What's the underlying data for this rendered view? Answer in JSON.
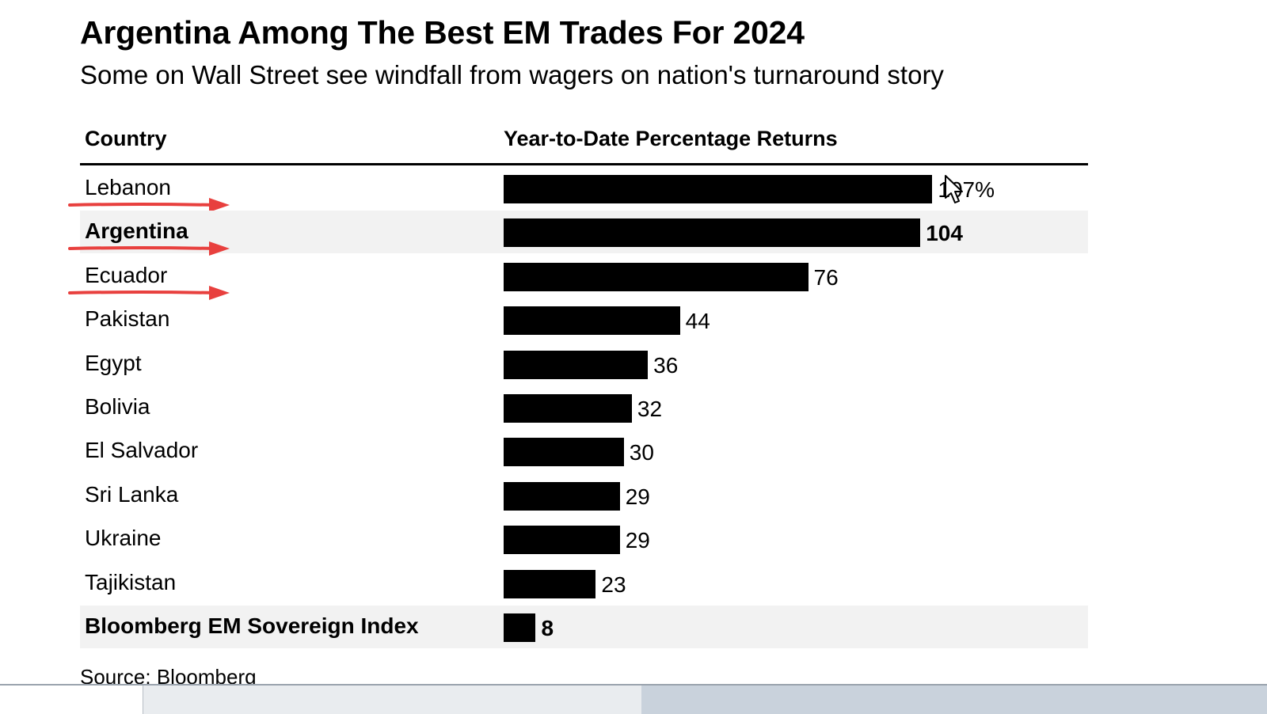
{
  "header": {
    "title": "Argentina Among The Best EM Trades For 2024",
    "subtitle": "Some on Wall Street see windfall from wagers on nation's turnaround story"
  },
  "table": {
    "col_country": "Country",
    "col_returns": "Year-to-Date Percentage Returns"
  },
  "chart_data": {
    "type": "bar",
    "orientation": "horizontal",
    "title": "Argentina Among The Best EM Trades For 2024",
    "subtitle": "Some on Wall Street see windfall from wagers on nation's turnaround story",
    "xlabel": "Year-to-Date Percentage Returns",
    "ylabel": "Country",
    "unit": "%",
    "grid": false,
    "categories": [
      "Lebanon",
      "Argentina",
      "Ecuador",
      "Pakistan",
      "Egypt",
      "Bolivia",
      "El Salvador",
      "Sri Lanka",
      "Ukraine",
      "Tajikistan",
      "Bloomberg EM Sovereign Index"
    ],
    "values": [
      107,
      104,
      76,
      44,
      36,
      32,
      30,
      29,
      29,
      23,
      8
    ],
    "value_labels": [
      "107%",
      "104",
      "76",
      "44",
      "36",
      "32",
      "30",
      "29",
      "29",
      "23",
      "8"
    ],
    "bold": [
      false,
      true,
      false,
      false,
      false,
      false,
      false,
      false,
      false,
      false,
      true
    ],
    "shaded": [
      false,
      true,
      false,
      false,
      false,
      false,
      false,
      false,
      false,
      false,
      true
    ],
    "annotations": {
      "red_arrows": [
        "Lebanon",
        "Argentina",
        "Ecuador"
      ],
      "arrow_color": "#e8403e"
    },
    "bar_color": "#000000"
  },
  "footer": {
    "source": "Source: Bloomberg"
  },
  "colors": {
    "shade": "#f2f2f2",
    "taskbar": "#e9ecef"
  }
}
